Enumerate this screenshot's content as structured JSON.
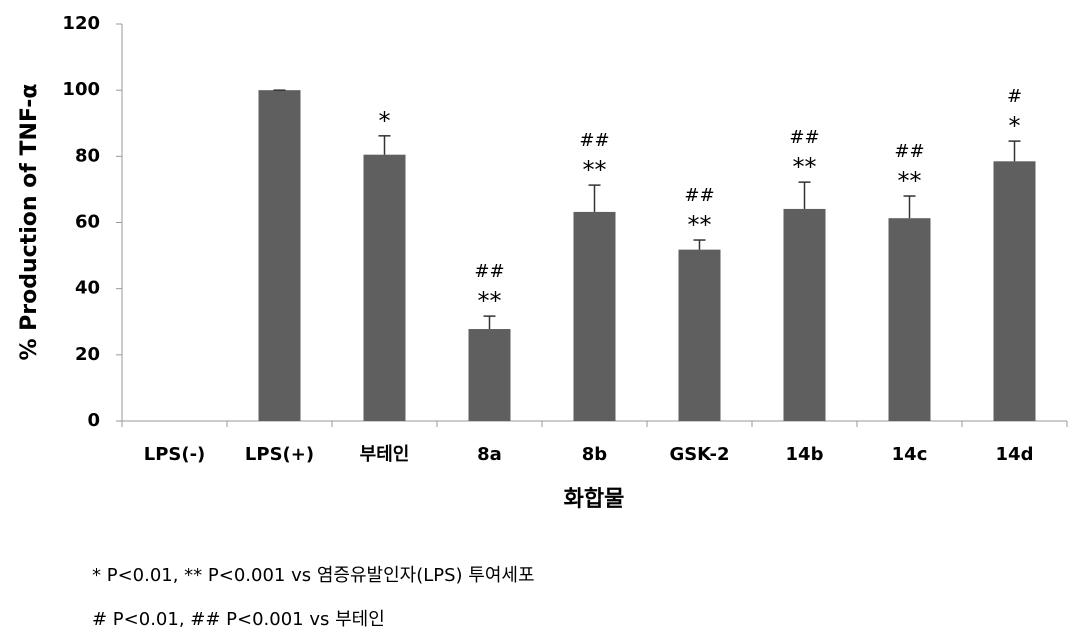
{
  "chart_data": {
    "type": "bar",
    "y_label": "% Production of TNF-α",
    "x_label": "화합물",
    "categories": [
      "LPS(-)",
      "LPS(+)",
      "부테인",
      "8a",
      "8b",
      "GSK-2",
      "14b",
      "14c",
      "14d"
    ],
    "values": [
      0,
      100,
      80.5,
      27.8,
      63.2,
      51.8,
      64.1,
      61.3,
      78.5
    ],
    "errors": [
      0,
      0,
      5.7,
      3.9,
      8.1,
      2.9,
      8.1,
      6.7,
      6.1
    ],
    "stars": [
      null,
      null,
      "*",
      "**",
      "**",
      "**",
      "**",
      "**",
      "*"
    ],
    "hashes": [
      null,
      null,
      null,
      "##",
      "##",
      "##",
      "##",
      "##",
      "#"
    ],
    "color": "#5f5f5f",
    "ylim": [
      0,
      120
    ],
    "yticks": [
      0,
      20,
      40,
      60,
      80,
      100,
      120
    ],
    "footnotes": [
      "* P<0.01, ** P<0.001 vs 염증유발인자(LPS) 투여세포",
      "# P<0.01, ## P<0.001 vs 부테인"
    ]
  }
}
